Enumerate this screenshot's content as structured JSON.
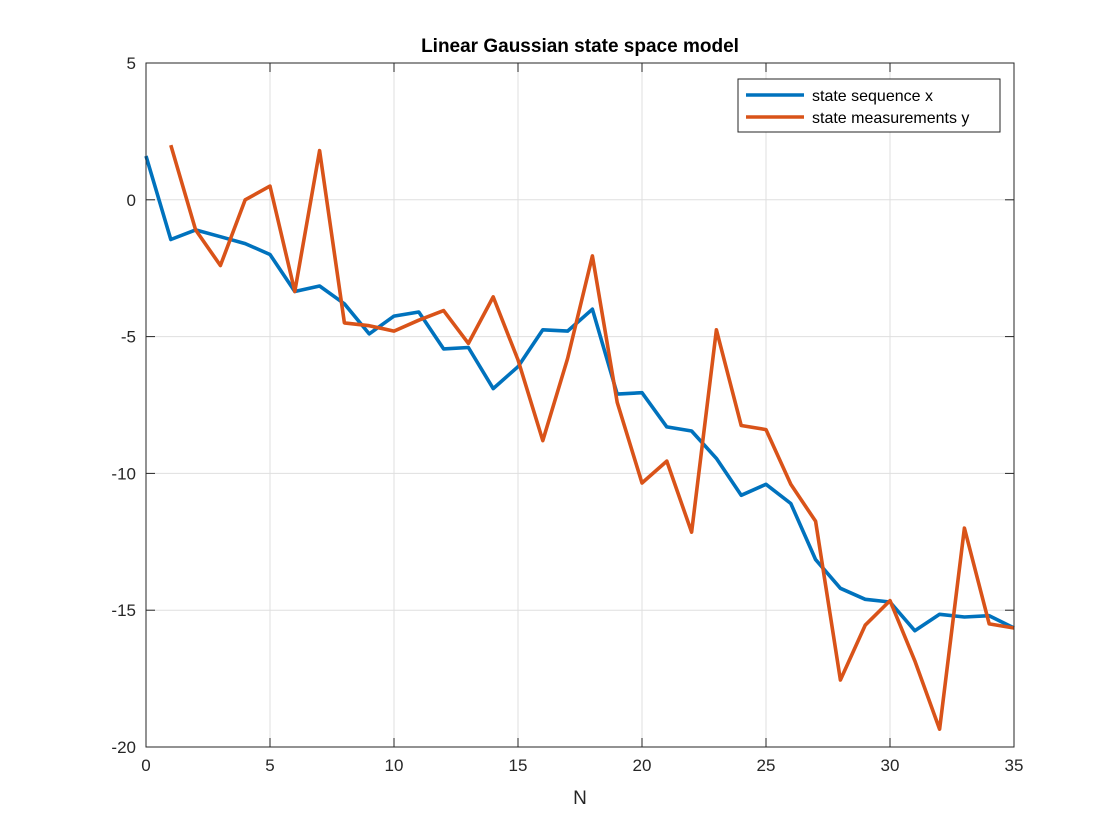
{
  "chart_data": {
    "type": "line",
    "title": "Linear Gaussian state space model",
    "xlabel": "N",
    "ylabel": "",
    "xlim": [
      0,
      35
    ],
    "ylim": [
      -20,
      5
    ],
    "xticks": [
      0,
      5,
      10,
      15,
      20,
      25,
      30,
      35
    ],
    "yticks": [
      5,
      0,
      -5,
      -10,
      -15,
      -20
    ],
    "grid": true,
    "legend_position": "top-right",
    "series": [
      {
        "name": "state sequence x",
        "color": "#0072BD",
        "x": [
          0,
          1,
          2,
          3,
          4,
          5,
          6,
          7,
          8,
          9,
          10,
          11,
          12,
          13,
          14,
          15,
          16,
          17,
          18,
          19,
          20,
          21,
          22,
          23,
          24,
          25,
          26,
          27,
          28,
          29,
          30,
          31,
          32,
          33,
          34,
          35
        ],
        "y": [
          1.6,
          -1.45,
          -1.1,
          -1.35,
          -1.6,
          -2.0,
          -3.35,
          -3.15,
          -3.8,
          -4.9,
          -4.25,
          -4.1,
          -5.45,
          -5.4,
          -6.9,
          -6.1,
          -4.75,
          -4.8,
          -4.0,
          -7.1,
          -7.05,
          -8.3,
          -8.45,
          -9.45,
          -10.8,
          -10.4,
          -11.1,
          -13.15,
          -14.2,
          -14.6,
          -14.7,
          -15.75,
          -15.15,
          -15.25,
          -15.2,
          -15.65
        ]
      },
      {
        "name": "state measurements y",
        "color": "#D95319",
        "x": [
          1,
          2,
          3,
          4,
          5,
          6,
          7,
          8,
          9,
          10,
          11,
          12,
          13,
          14,
          15,
          16,
          17,
          18,
          19,
          20,
          21,
          22,
          23,
          24,
          25,
          26,
          27,
          28,
          29,
          30,
          31,
          32,
          33,
          34,
          35
        ],
        "y": [
          2.0,
          -1.1,
          -2.4,
          0.0,
          0.5,
          -3.35,
          1.8,
          -4.5,
          -4.6,
          -4.8,
          -4.4,
          -4.05,
          -5.25,
          -3.55,
          -5.85,
          -8.8,
          -5.8,
          -2.05,
          -7.4,
          -10.35,
          -9.55,
          -12.15,
          -4.75,
          -8.25,
          -8.4,
          -10.4,
          -11.75,
          -17.55,
          -15.55,
          -14.65,
          -16.85,
          -19.35,
          -12.0,
          -15.5,
          -15.65
        ]
      }
    ]
  }
}
